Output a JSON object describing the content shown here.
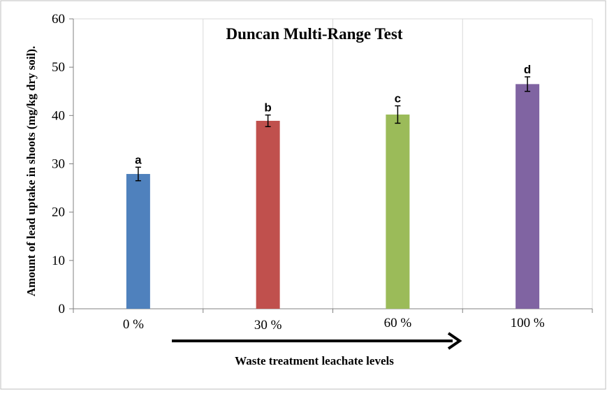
{
  "chart_data": {
    "type": "bar",
    "title": "Duncan Multi-Range Test",
    "xlabel": "Waste treatment leachate levels",
    "ylabel": "Amount of lead uptake in shoots (mg/kg dry soil).",
    "categories": [
      "0 %",
      "30 %",
      "60 %",
      "100 %"
    ],
    "values": [
      27.9,
      38.9,
      40.2,
      46.5
    ],
    "errors": [
      1.4,
      1.2,
      1.8,
      1.5
    ],
    "significance_letters": [
      "a",
      "b",
      "c",
      "d"
    ],
    "colors": [
      "#4F81BD",
      "#C0504D",
      "#9BBB59",
      "#8064A2"
    ],
    "ylim": [
      0,
      60
    ],
    "yticks": [
      0,
      10,
      20,
      30,
      40,
      50,
      60
    ],
    "grid": true,
    "legend": "none",
    "annotation": "right-arrow"
  }
}
